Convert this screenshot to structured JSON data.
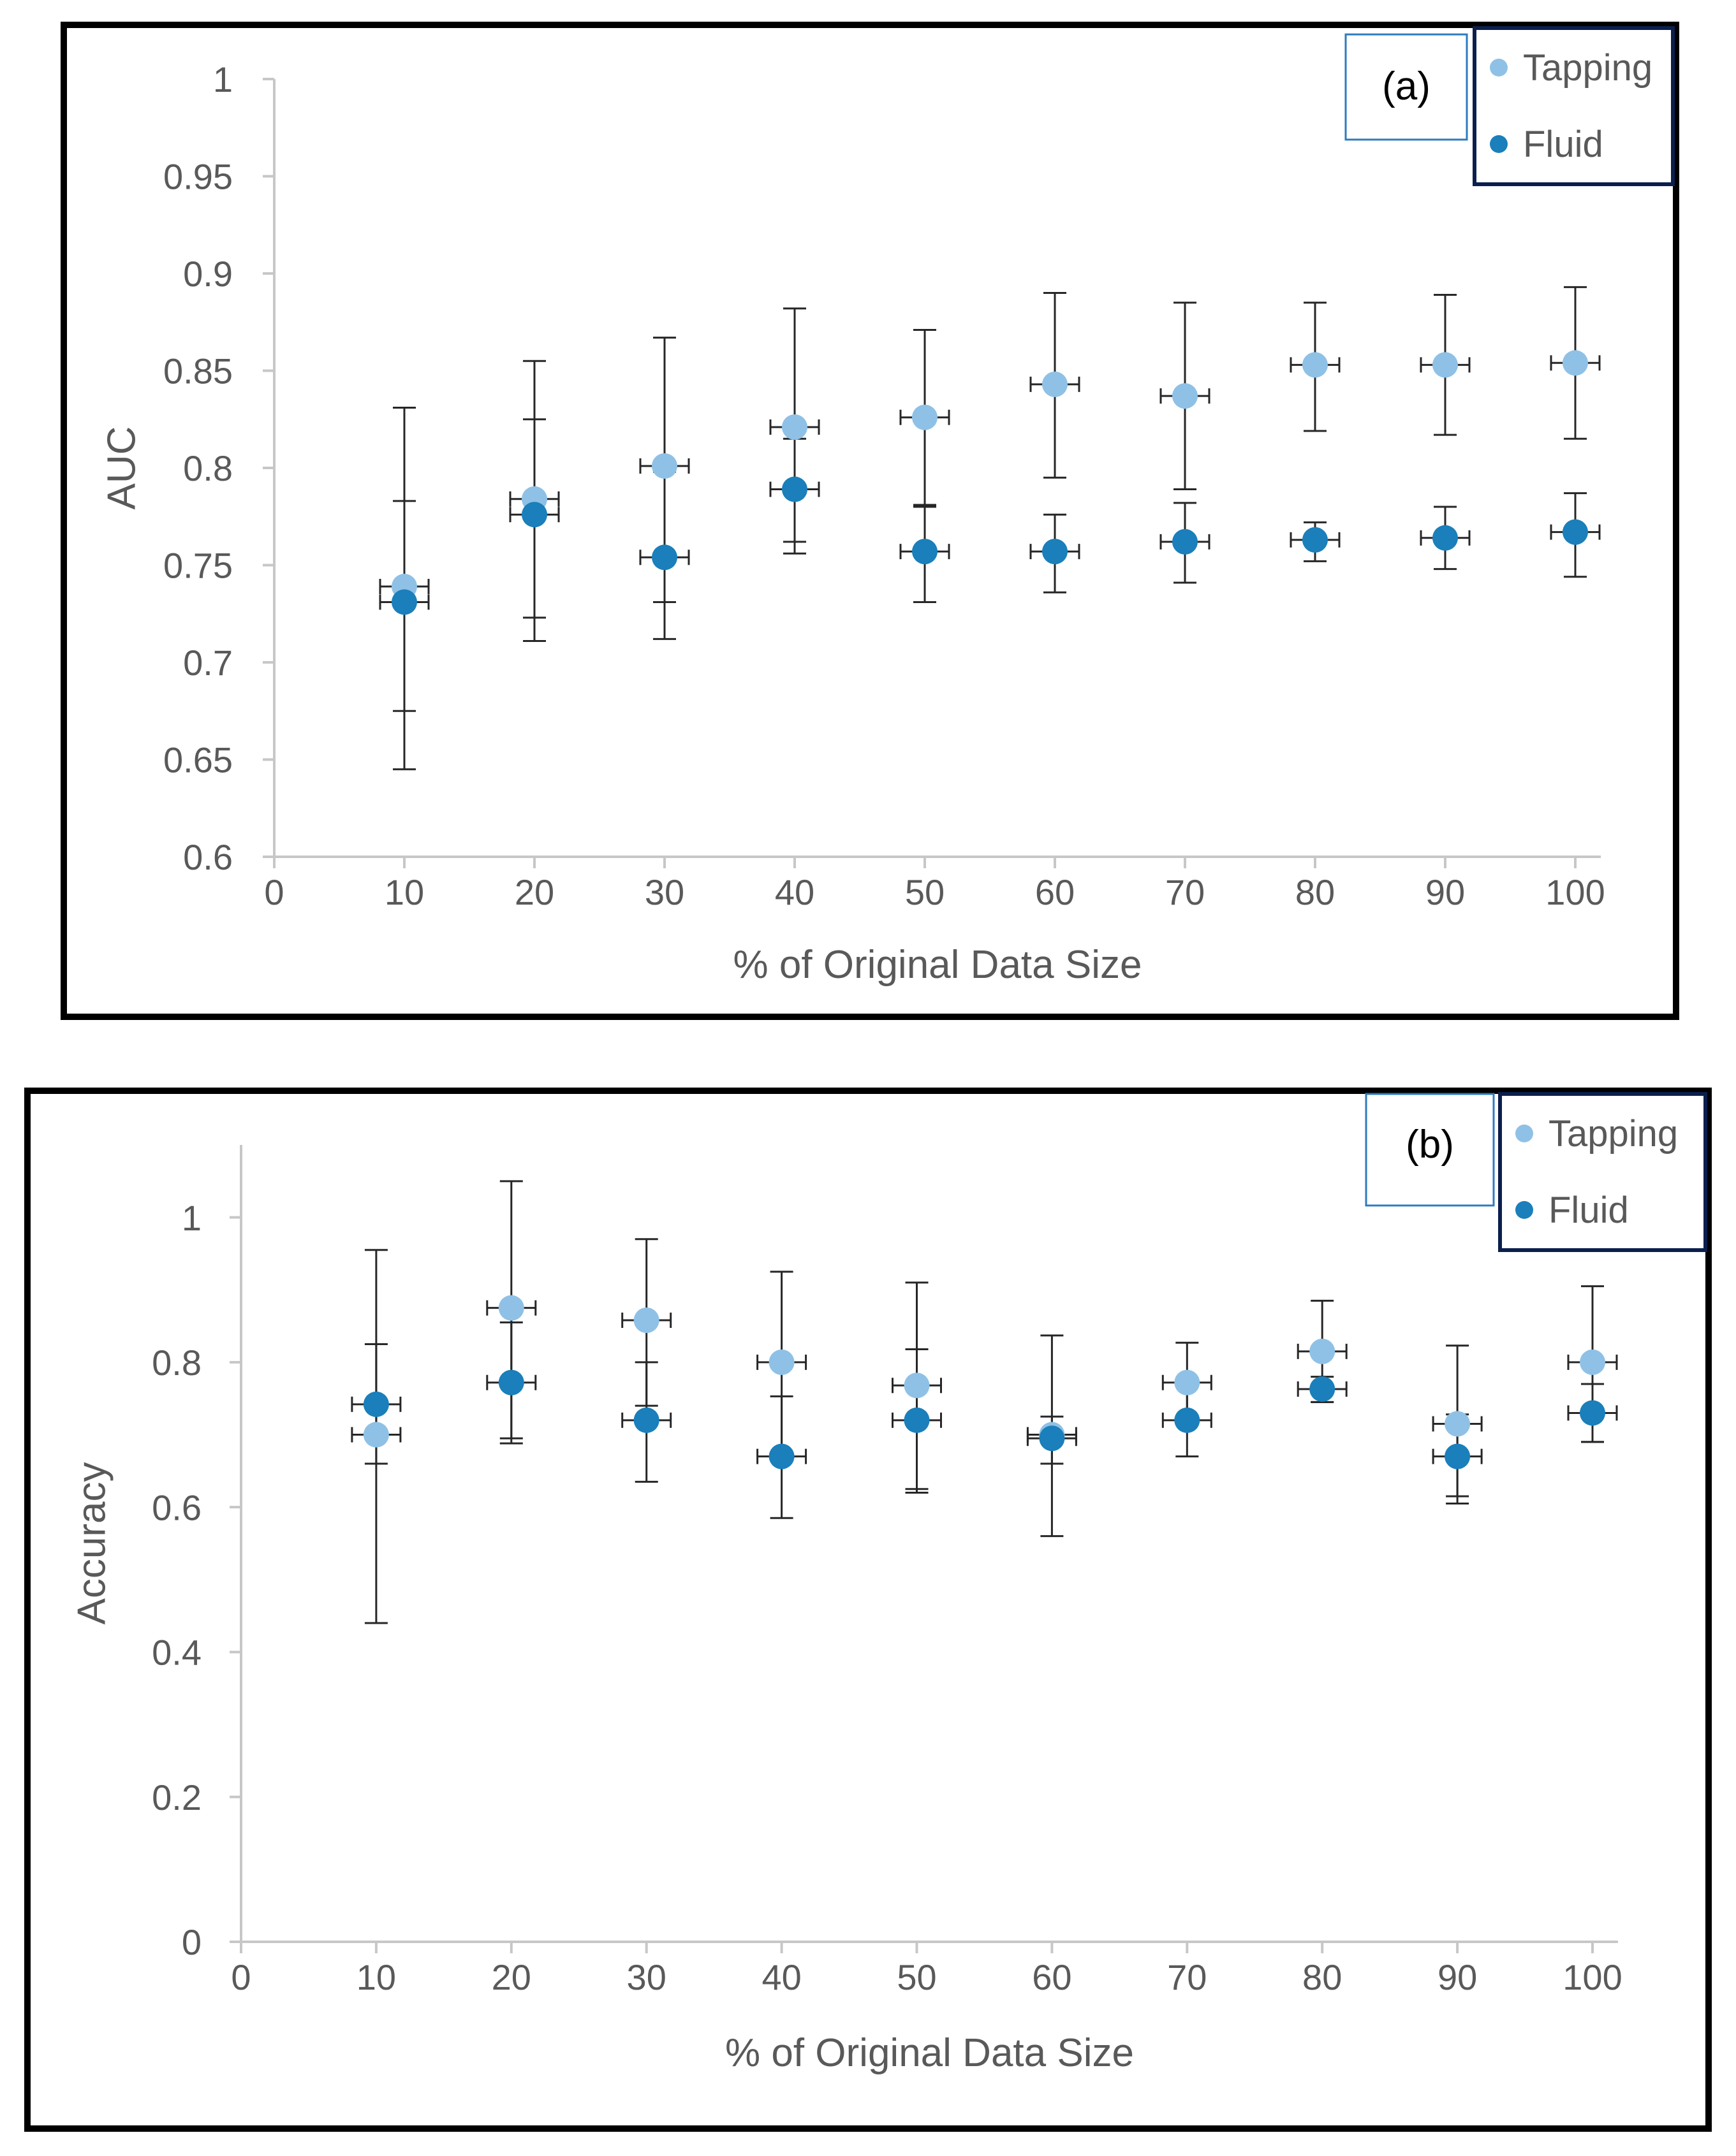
{
  "chart_data": [
    {
      "type": "scatter",
      "panel_label": "(a)",
      "xlabel": "% of Original Data Size",
      "ylabel": "AUC",
      "xlim": [
        0,
        100
      ],
      "ylim": [
        0.6,
        1
      ],
      "x_ticks": [
        "0",
        "10",
        "20",
        "30",
        "40",
        "50",
        "60",
        "70",
        "80",
        "90",
        "100"
      ],
      "y_ticks": [
        "0.6",
        "0.65",
        "0.7",
        "0.75",
        "0.8",
        "0.85",
        "0.9",
        "0.95",
        "1"
      ],
      "legend_position": "top-right",
      "series": [
        {
          "name": "Tapping",
          "color": "#8fc1e6",
          "points": [
            {
              "x": 10,
              "y": 0.739,
              "err_low": 0.675,
              "err_high": 0.783
            },
            {
              "x": 20,
              "y": 0.784,
              "err_low": 0.723,
              "err_high": 0.855
            },
            {
              "x": 30,
              "y": 0.801,
              "err_low": 0.731,
              "err_high": 0.867
            },
            {
              "x": 40,
              "y": 0.821,
              "err_low": 0.762,
              "err_high": 0.882
            },
            {
              "x": 50,
              "y": 0.826,
              "err_low": 0.781,
              "err_high": 0.871
            },
            {
              "x": 60,
              "y": 0.843,
              "err_low": 0.795,
              "err_high": 0.89
            },
            {
              "x": 70,
              "y": 0.837,
              "err_low": 0.789,
              "err_high": 0.885
            },
            {
              "x": 80,
              "y": 0.853,
              "err_low": 0.819,
              "err_high": 0.885
            },
            {
              "x": 90,
              "y": 0.853,
              "err_low": 0.817,
              "err_high": 0.889
            },
            {
              "x": 100,
              "y": 0.854,
              "err_low": 0.815,
              "err_high": 0.893
            }
          ]
        },
        {
          "name": "Fluid",
          "color": "#1a7fba",
          "points": [
            {
              "x": 10,
              "y": 0.731,
              "err_low": 0.645,
              "err_high": 0.831
            },
            {
              "x": 20,
              "y": 0.776,
              "err_low": 0.711,
              "err_high": 0.825
            },
            {
              "x": 30,
              "y": 0.754,
              "err_low": 0.712,
              "err_high": 0.798
            },
            {
              "x": 40,
              "y": 0.789,
              "err_low": 0.756,
              "err_high": 0.815
            },
            {
              "x": 50,
              "y": 0.757,
              "err_low": 0.731,
              "err_high": 0.78
            },
            {
              "x": 60,
              "y": 0.757,
              "err_low": 0.736,
              "err_high": 0.776
            },
            {
              "x": 70,
              "y": 0.762,
              "err_low": 0.741,
              "err_high": 0.782
            },
            {
              "x": 80,
              "y": 0.763,
              "err_low": 0.752,
              "err_high": 0.772
            },
            {
              "x": 90,
              "y": 0.764,
              "err_low": 0.748,
              "err_high": 0.78
            },
            {
              "x": 100,
              "y": 0.767,
              "err_low": 0.744,
              "err_high": 0.787
            }
          ]
        }
      ]
    },
    {
      "type": "scatter",
      "panel_label": "(b)",
      "xlabel": "% of Original Data Size",
      "ylabel": "Accuracy",
      "xlim": [
        0,
        100
      ],
      "ylim": [
        0,
        1.1
      ],
      "x_ticks": [
        "0",
        "10",
        "20",
        "30",
        "40",
        "50",
        "60",
        "70",
        "80",
        "90",
        "100"
      ],
      "y_ticks": [
        "0",
        "0.2",
        "0.4",
        "0.6",
        "0.8",
        "1"
      ],
      "legend_position": "top-right",
      "series": [
        {
          "name": "Tapping",
          "color": "#8fc1e6",
          "points": [
            {
              "x": 10,
              "y": 0.7,
              "err_low": 0.44,
              "err_high": 0.955
            },
            {
              "x": 20,
              "y": 0.875,
              "err_low": 0.695,
              "err_high": 1.05
            },
            {
              "x": 30,
              "y": 0.858,
              "err_low": 0.74,
              "err_high": 0.97
            },
            {
              "x": 40,
              "y": 0.8,
              "err_low": 0.675,
              "err_high": 0.925
            },
            {
              "x": 50,
              "y": 0.768,
              "err_low": 0.625,
              "err_high": 0.91
            },
            {
              "x": 60,
              "y": 0.7,
              "err_low": 0.56,
              "err_high": 0.837
            },
            {
              "x": 70,
              "y": 0.772,
              "err_low": 0.72,
              "err_high": 0.827
            },
            {
              "x": 80,
              "y": 0.815,
              "err_low": 0.745,
              "err_high": 0.885
            },
            {
              "x": 90,
              "y": 0.715,
              "err_low": 0.605,
              "err_high": 0.823
            },
            {
              "x": 100,
              "y": 0.8,
              "err_low": 0.69,
              "err_high": 0.905
            }
          ]
        },
        {
          "name": "Fluid",
          "color": "#1a7fba",
          "points": [
            {
              "x": 10,
              "y": 0.742,
              "err_low": 0.66,
              "err_high": 0.825
            },
            {
              "x": 20,
              "y": 0.772,
              "err_low": 0.688,
              "err_high": 0.855
            },
            {
              "x": 30,
              "y": 0.72,
              "err_low": 0.635,
              "err_high": 0.8
            },
            {
              "x": 40,
              "y": 0.67,
              "err_low": 0.585,
              "err_high": 0.753
            },
            {
              "x": 50,
              "y": 0.72,
              "err_low": 0.62,
              "err_high": 0.818
            },
            {
              "x": 60,
              "y": 0.695,
              "err_low": 0.66,
              "err_high": 0.725
            },
            {
              "x": 70,
              "y": 0.72,
              "err_low": 0.67,
              "err_high": 0.77
            },
            {
              "x": 80,
              "y": 0.763,
              "err_low": 0.745,
              "err_high": 0.78
            },
            {
              "x": 90,
              "y": 0.67,
              "err_low": 0.615,
              "err_high": 0.728
            },
            {
              "x": 100,
              "y": 0.73,
              "err_low": 0.69,
              "err_high": 0.77
            }
          ]
        }
      ]
    }
  ]
}
